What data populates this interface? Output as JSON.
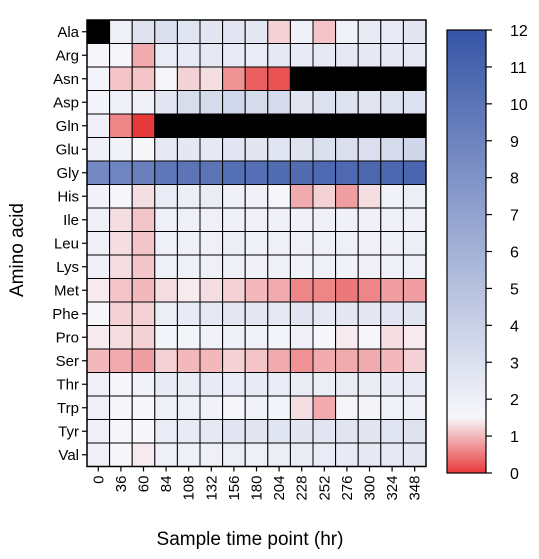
{
  "chart_data": {
    "type": "heatmap",
    "title": "",
    "xlabel": "Sample time point (hr)",
    "ylabel": "Amino acid",
    "x": [
      "0",
      "36",
      "60",
      "84",
      "108",
      "132",
      "156",
      "180",
      "204",
      "228",
      "252",
      "276",
      "300",
      "324",
      "348"
    ],
    "y": [
      "Ala",
      "Arg",
      "Asn",
      "Asp",
      "Gln",
      "Glu",
      "Gly",
      "His",
      "Ile",
      "Leu",
      "Lys",
      "Met",
      "Phe",
      "Pro",
      "Ser",
      "Thr",
      "Trp",
      "Tyr",
      "Val"
    ],
    "values": [
      [
        null,
        2.0,
        2.8,
        3.0,
        2.7,
        2.6,
        2.6,
        2.5,
        1.2,
        1.9,
        1.1,
        1.8,
        2.3,
        2.3,
        2.6
      ],
      [
        1.6,
        1.6,
        0.9,
        2.2,
        2.3,
        2.4,
        2.3,
        2.2,
        2.4,
        2.3,
        2.4,
        2.4,
        2.4,
        2.4,
        2.4
      ],
      [
        1.7,
        1.1,
        1.1,
        1.6,
        1.2,
        1.3,
        0.7,
        0.3,
        0.2,
        null,
        null,
        null,
        null,
        null,
        null
      ],
      [
        1.7,
        2.0,
        2.0,
        2.6,
        3.2,
        3.3,
        3.5,
        3.3,
        3.3,
        2.7,
        2.9,
        2.8,
        2.7,
        2.8,
        2.9
      ],
      [
        2.0,
        0.6,
        -0.2,
        null,
        null,
        null,
        null,
        null,
        null,
        null,
        null,
        null,
        null,
        null,
        null
      ],
      [
        2.0,
        1.8,
        1.5,
        2.4,
        2.5,
        2.4,
        2.6,
        2.6,
        2.7,
        2.8,
        3.0,
        3.1,
        3.1,
        3.3,
        3.6
      ],
      [
        8.6,
        8.9,
        9.2,
        9.8,
        9.9,
        10.0,
        10.3,
        10.3,
        10.5,
        10.5,
        10.7,
        10.7,
        10.8,
        10.8,
        10.9
      ],
      [
        1.8,
        1.6,
        1.3,
        2.2,
        2.1,
        2.2,
        2.0,
        1.9,
        1.6,
        0.9,
        1.2,
        0.8,
        1.3,
        1.8,
        2.1
      ],
      [
        2.0,
        1.3,
        1.1,
        2.0,
        2.0,
        2.0,
        2.0,
        2.0,
        1.9,
        1.9,
        1.9,
        1.9,
        1.9,
        2.0,
        2.0
      ],
      [
        2.0,
        1.3,
        1.1,
        2.0,
        2.0,
        2.0,
        2.1,
        2.0,
        2.0,
        2.0,
        2.0,
        2.0,
        2.0,
        2.0,
        2.1
      ],
      [
        2.0,
        1.3,
        1.1,
        1.9,
        2.0,
        2.0,
        2.0,
        1.9,
        1.9,
        1.8,
        1.9,
        1.8,
        1.9,
        1.9,
        2.0
      ],
      [
        1.4,
        1.1,
        1.0,
        1.3,
        1.4,
        1.3,
        1.2,
        1.0,
        0.9,
        0.6,
        0.6,
        0.5,
        0.6,
        0.8,
        0.8
      ],
      [
        1.5,
        1.2,
        1.2,
        2.1,
        2.3,
        2.4,
        2.5,
        2.5,
        2.4,
        2.6,
        2.4,
        2.5,
        2.5,
        2.6,
        2.7
      ],
      [
        1.4,
        1.3,
        1.2,
        1.7,
        1.7,
        1.8,
        1.9,
        1.8,
        1.7,
        2.0,
        1.5,
        1.4,
        1.6,
        1.3,
        1.4
      ],
      [
        1.0,
        0.9,
        0.8,
        1.2,
        1.0,
        1.0,
        1.2,
        1.1,
        0.9,
        0.7,
        0.9,
        0.9,
        0.9,
        1.0,
        1.2
      ],
      [
        2.0,
        1.6,
        1.8,
        2.3,
        2.2,
        2.3,
        2.2,
        2.3,
        2.2,
        2.2,
        2.1,
        2.2,
        2.2,
        2.3,
        2.3
      ],
      [
        2.0,
        1.6,
        1.6,
        2.0,
        2.0,
        1.8,
        1.6,
        1.8,
        1.7,
        1.3,
        0.9,
        1.6,
        1.7,
        1.8,
        1.9
      ],
      [
        2.0,
        1.6,
        1.5,
        2.2,
        2.3,
        2.4,
        2.6,
        2.6,
        2.7,
        2.6,
        2.6,
        2.7,
        2.7,
        2.7,
        2.8
      ],
      [
        2.0,
        1.5,
        1.4,
        2.0,
        2.0,
        2.0,
        2.1,
        2.0,
        2.1,
        2.2,
        2.2,
        2.3,
        2.4,
        2.4,
        2.5
      ]
    ],
    "colorbar": {
      "min": 0,
      "max": 12,
      "ticks": [
        "0",
        "1",
        "2",
        "3",
        "4",
        "5",
        "6",
        "7",
        "8",
        "9",
        "10",
        "11",
        "12"
      ],
      "low_color": "#e8393a",
      "mid_color": "#f7f7fb",
      "high_color": "#3655a6",
      "mid_value": 1.5
    },
    "missing_color": "#000000",
    "grid": true,
    "legend": "right"
  }
}
